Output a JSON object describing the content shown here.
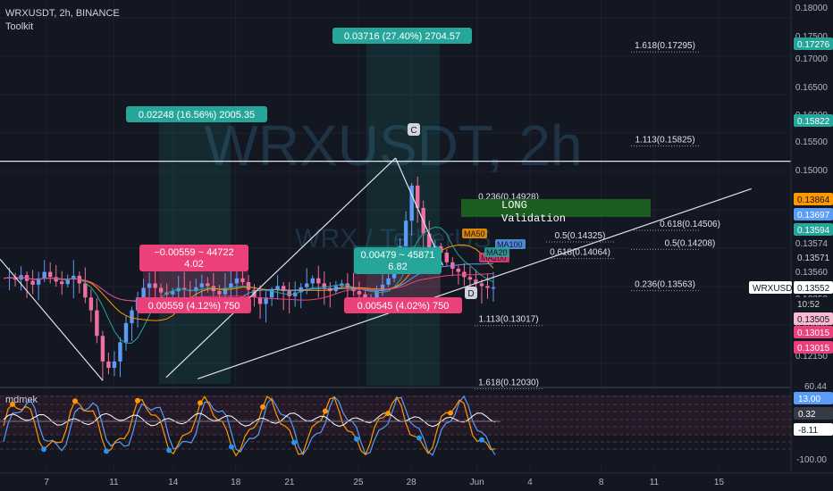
{
  "header": {
    "symbol_line": "WRXUSDT, 2h, BINANCE",
    "toolkit": "Toolkit"
  },
  "watermark": {
    "big": "WRXUSDT, 2h",
    "small": "WRX / TetherUS"
  },
  "colors": {
    "bg": "#131722",
    "grid": "#1e222d",
    "up": "#26a69a",
    "down": "#ef5350",
    "candle_up": "#5b9cf6",
    "candle_down": "#ef6fa0",
    "white": "#e0e3eb",
    "teal_label": "#26a69a",
    "pink_label": "#ec407a",
    "long_green": "#1b5e20"
  },
  "chart_data": {
    "type": "candlestick",
    "title": "WRXUSDT, 2h, BINANCE",
    "price_axis": {
      "ylim": [
        0.1205,
        0.1805
      ],
      "ticks": [
        "0.18000",
        "0.17500",
        "0.17000",
        "0.16500",
        "0.16000",
        "0.15500",
        "0.15000",
        "0.14500",
        "0.14000",
        "0.13574",
        "0.13560",
        "0.13250",
        "0.13000",
        "0.12150"
      ],
      "badges": [
        {
          "text": "0.17276",
          "bg": "#26a69a",
          "fg": "#ffffff"
        },
        {
          "text": "0.15822",
          "bg": "#26a69a",
          "fg": "#ffffff"
        },
        {
          "text": "0.13864",
          "bg": "#ff9800",
          "fg": "#131722"
        },
        {
          "text": "0.13697",
          "bg": "#5b9cf6",
          "fg": "#ffffff"
        },
        {
          "text": "0.13594",
          "bg": "#26a69a",
          "fg": "#ffffff"
        },
        {
          "text": "0.13571",
          "bg": "#131722",
          "fg": "#d1d4dc"
        },
        {
          "text": "WRXUSDT",
          "bg": "#ffffff",
          "fg": "#131722"
        },
        {
          "text": "0.13552",
          "bg": "#ffffff",
          "fg": "#131722"
        },
        {
          "text": "10:52",
          "bg": "#131722",
          "fg": "#d1d4dc"
        },
        {
          "text": "0.13505",
          "bg": "#f8bbd0",
          "fg": "#131722"
        },
        {
          "text": "0.13015",
          "bg": "#ec407a",
          "fg": "#ffffff"
        },
        {
          "text": "0.13015",
          "bg": "#ec407a",
          "fg": "#ffffff"
        }
      ]
    },
    "time_axis": [
      "7",
      "11",
      "14",
      "18",
      "21",
      "25",
      "28",
      "Jun",
      "4",
      "8",
      "11",
      "15"
    ],
    "price_path": [
      0.137,
      0.1372,
      0.1368,
      0.1375,
      0.1366,
      0.136,
      0.137,
      0.138,
      0.1372,
      0.1365,
      0.1361,
      0.1368,
      0.1374,
      0.1362,
      0.134,
      0.132,
      0.128,
      0.124,
      0.123,
      0.124,
      0.127,
      0.13,
      0.132,
      0.134,
      0.1355,
      0.1362,
      0.1355,
      0.1348,
      0.1345,
      0.135,
      0.1355,
      0.1352,
      0.135,
      0.1356,
      0.1362,
      0.1358,
      0.135,
      0.1345,
      0.1355,
      0.1362,
      0.137,
      0.1364,
      0.1352,
      0.134,
      0.133,
      0.134,
      0.1352,
      0.1358,
      0.135,
      0.1342,
      0.1348,
      0.1356,
      0.1362,
      0.137,
      0.1362,
      0.1355,
      0.135,
      0.1358,
      0.1362,
      0.1356,
      0.135,
      0.1345,
      0.134,
      0.1335,
      0.135,
      0.136,
      0.137,
      0.1395,
      0.142,
      0.146,
      0.1515,
      0.148,
      0.144,
      0.1415,
      0.142,
      0.141,
      0.1395,
      0.1385,
      0.138,
      0.1372,
      0.1368,
      0.1362,
      0.1358,
      0.1355,
      0.1356
    ],
    "horizontal_line": {
      "price": 0.1553
    },
    "trend_lines": [
      {
        "from": [
          0.0,
          0.14
        ],
        "to": [
          0.13,
          0.121
        ]
      },
      {
        "from": [
          0.21,
          0.1215
        ],
        "to": [
          0.5,
          0.1558
        ]
      },
      {
        "from": [
          0.5,
          0.1558
        ],
        "to": [
          0.56,
          0.139
        ]
      },
      {
        "from": [
          0.25,
          0.1213
        ],
        "to": [
          0.95,
          0.151
        ]
      }
    ],
    "points": [
      {
        "label": "C",
        "price": 0.1558
      },
      {
        "label": "D",
        "price": 0.1314
      }
    ],
    "fib_levels": [
      {
        "text": "1.618(0.17295)",
        "price": 0.17295
      },
      {
        "text": "1.113(0.15825)",
        "price": 0.15825
      },
      {
        "text": "0.236(0.14928)",
        "price": 0.14928
      },
      {
        "text": "0.618(0.14506)",
        "price": 0.14506
      },
      {
        "text": "0.5(0.14325)",
        "price": 0.14325
      },
      {
        "text": "0.5(0.14208)",
        "price": 0.14208
      },
      {
        "text": "0.618(0.14064)",
        "price": 0.14064
      },
      {
        "text": "0.236(0.13563)",
        "price": 0.13563
      },
      {
        "text": "1.113(0.13017)",
        "price": 0.13017
      },
      {
        "text": "1.618(0.12030)",
        "price": 0.1203
      }
    ],
    "measure_labels": [
      {
        "text": "0.03716 (27.40%) 2704.57",
        "type": "teal"
      },
      {
        "text": "0.02248 (16.56%) 2005.35",
        "type": "teal"
      },
      {
        "text": "−0.00559 ~ 44722",
        "text2": "4.02",
        "type": "pink-box"
      },
      {
        "text": "0.00479 ~ 45871",
        "text2": "6.82",
        "type": "teal-box"
      },
      {
        "text": "0.00559 (4.12%) 750",
        "type": "pink"
      },
      {
        "text": "0.00545 (4.02%) 750",
        "type": "pink"
      }
    ],
    "long_box": {
      "line1": "LONG",
      "line2": "Validation"
    },
    "ma_labels": [
      {
        "text": "MA50",
        "color": "#ff9800"
      },
      {
        "text": "MA100",
        "color": "#5b9cf6"
      },
      {
        "text": "MA200",
        "color": "#ec407a"
      },
      {
        "text": "MA20",
        "color": "#26a69a"
      }
    ],
    "oscillator": {
      "title": "mdmek",
      "ticks": [
        "60.44",
        "13.00",
        "0.32",
        "-8.11",
        "-100.00"
      ],
      "badge_values": [
        {
          "text": "13.00",
          "bg": "#5b9cf6",
          "fg": "#ffffff"
        },
        {
          "text": "0.32",
          "bg": "#363a45",
          "fg": "#ffffff"
        },
        {
          "text": "-8.11",
          "bg": "#ffffff",
          "fg": "#131722"
        }
      ]
    }
  }
}
